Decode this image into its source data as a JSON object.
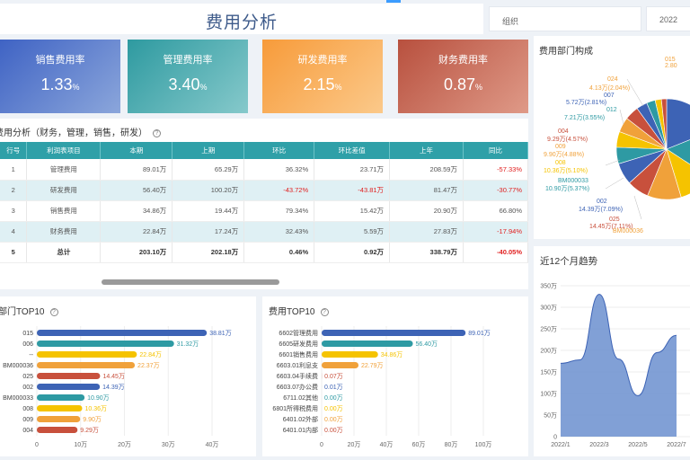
{
  "header": {
    "title": "费用分析",
    "org_placeholder": "组织",
    "year": "2022"
  },
  "kpis": [
    {
      "label": "销售费用率",
      "value": "1.33",
      "unit": "%"
    },
    {
      "label": "管理费用率",
      "value": "3.40",
      "unit": "%"
    },
    {
      "label": "研发费用率",
      "value": "2.15",
      "unit": "%"
    },
    {
      "label": "财务费用率",
      "value": "0.87",
      "unit": "%"
    }
  ],
  "table": {
    "title": "费用分析（财务，管理，销售，研发）",
    "columns": [
      "行号",
      "利润表项目",
      "本期",
      "上期",
      "环比",
      "环比差值",
      "上年",
      "同比"
    ],
    "rows": [
      [
        "1",
        "管理费用",
        "89.01万",
        "65.29万",
        "36.32%",
        "23.71万",
        "208.59万",
        "-57.33%"
      ],
      [
        "2",
        "研发费用",
        "56.40万",
        "100.20万",
        "-43.72%",
        "-43.81万",
        "81.47万",
        "-30.77%"
      ],
      [
        "3",
        "销售费用",
        "34.86万",
        "19.44万",
        "79.34%",
        "15.42万",
        "20.90万",
        "66.80%"
      ],
      [
        "4",
        "财务费用",
        "22.84万",
        "17.24万",
        "32.43%",
        "5.59万",
        "27.83万",
        "-17.94%"
      ],
      [
        "5",
        "总计",
        "203.10万",
        "202.18万",
        "0.46%",
        "0.92万",
        "338.79万",
        "-40.05%"
      ]
    ]
  },
  "dept_top10": {
    "title": "部门TOP10",
    "xticks": [
      "0",
      "10万",
      "20万",
      "30万",
      "40万"
    ],
    "items": [
      {
        "name": "015",
        "value": 38.81,
        "label": "38.81万",
        "color": "#3d63b5"
      },
      {
        "name": "006",
        "value": 31.32,
        "label": "31.32万",
        "color": "#2e9aa3"
      },
      {
        "name": "--",
        "value": 22.84,
        "label": "22.84万",
        "color": "#f5c300"
      },
      {
        "name": "BM000036",
        "value": 22.37,
        "label": "22.37万",
        "color": "#f0a13a"
      },
      {
        "name": "025",
        "value": 14.45,
        "label": "14.45万",
        "color": "#c8503c"
      },
      {
        "name": "002",
        "value": 14.39,
        "label": "14.39万",
        "color": "#3d63b5"
      },
      {
        "name": "BM000033",
        "value": 10.9,
        "label": "10.90万",
        "color": "#2e9aa3"
      },
      {
        "name": "008",
        "value": 10.36,
        "label": "10.36万",
        "color": "#f5c300"
      },
      {
        "name": "009",
        "value": 9.9,
        "label": "9.90万",
        "color": "#f0a13a"
      },
      {
        "name": "004",
        "value": 9.29,
        "label": "9.29万",
        "color": "#c8503c"
      }
    ]
  },
  "cost_top10": {
    "title": "费用TOP10",
    "xticks": [
      "0",
      "20万",
      "40万",
      "60万",
      "80万",
      "100万"
    ],
    "items": [
      {
        "name": "6602管理费用",
        "value": 89.01,
        "label": "89.01万",
        "color": "#3d63b5"
      },
      {
        "name": "6605研发费用",
        "value": 56.4,
        "label": "56.40万",
        "color": "#2e9aa3"
      },
      {
        "name": "6601销售费用",
        "value": 34.86,
        "label": "34.86万",
        "color": "#f5c300"
      },
      {
        "name": "6603.01利息支",
        "value": 22.79,
        "label": "22.79万",
        "color": "#f0a13a"
      },
      {
        "name": "6603.04手续费",
        "value": 0.07,
        "label": "0.07万",
        "color": "#c8503c"
      },
      {
        "name": "6603.07办公费",
        "value": 0.01,
        "label": "0.01万",
        "color": "#3d63b5"
      },
      {
        "name": "6711.02其他",
        "value": 0.0,
        "label": "0.00万",
        "color": "#2e9aa3"
      },
      {
        "name": "6801所得税费用",
        "value": 0.0,
        "label": "0.00万",
        "color": "#f5c300"
      },
      {
        "name": "6401.02外部",
        "value": 0.0,
        "label": "0.00万",
        "color": "#f0a13a"
      },
      {
        "name": "6401.01内部",
        "value": 0.0,
        "label": "0.00万",
        "color": "#c8503c"
      }
    ]
  },
  "dept_pie": {
    "title": "费用部门构成",
    "slices": [
      {
        "label": "015",
        "value": 19.11,
        "color": "#3d63b5"
      },
      {
        "label": "006",
        "value": 15.42,
        "color": "#2e9aa3"
      },
      {
        "label": "--",
        "value": 11.25,
        "color": "#f5c300"
      },
      {
        "label": "BM000036",
        "value": 11.01,
        "color": "#f0a13a"
      },
      {
        "label": "025",
        "value": 7.11,
        "color": "#c8503c"
      },
      {
        "label": "002",
        "value": 7.09,
        "color": "#3d63b5"
      },
      {
        "label": "BM000033",
        "value": 5.37,
        "color": "#2e9aa3"
      },
      {
        "label": "008",
        "value": 5.1,
        "color": "#f5c300"
      },
      {
        "label": "009",
        "value": 4.88,
        "color": "#f0a13a"
      },
      {
        "label": "004",
        "value": 4.57,
        "color": "#c8503c"
      },
      {
        "label": "012",
        "value": 3.55,
        "color": "#3d63b5"
      },
      {
        "label": "007",
        "value": 2.81,
        "color": "#2e9aa3"
      },
      {
        "label": "024",
        "value": 2.04,
        "color": "#f5c300"
      },
      {
        "label": "other",
        "value": 1.69,
        "color": "#c8503c"
      }
    ],
    "callouts": [
      {
        "text": "015",
        "color": "#f0a13a"
      },
      {
        "text": "2.80",
        "color": "#f0a13a"
      },
      {
        "text": "024",
        "color": "#f0a13a"
      },
      {
        "text": "4.13万(2.04%)",
        "color": "#f0a13a"
      },
      {
        "text": "007",
        "color": "#3d63b5"
      },
      {
        "text": "5.72万(2.81%)",
        "color": "#3d63b5"
      },
      {
        "text": "012",
        "color": "#2e9aa3"
      },
      {
        "text": "7.21万(3.55%)",
        "color": "#2e9aa3"
      },
      {
        "text": "004",
        "color": "#c8503c"
      },
      {
        "text": "9.29万(4.57%)",
        "color": "#c8503c"
      },
      {
        "text": "009",
        "color": "#f0a13a"
      },
      {
        "text": "9.90万(4.88%)",
        "color": "#f0a13a"
      },
      {
        "text": "008",
        "color": "#f5c300"
      },
      {
        "text": "10.36万(5.10%)",
        "color": "#f5c300"
      },
      {
        "text": "BM000033",
        "color": "#2e9aa3"
      },
      {
        "text": "10.90万(5.37%)",
        "color": "#2e9aa3"
      },
      {
        "text": "002",
        "color": "#3d63b5"
      },
      {
        "text": "14.39万(7.09%)",
        "color": "#3d63b5"
      },
      {
        "text": "025",
        "color": "#c8503c"
      },
      {
        "text": "14.45万(7.11%)",
        "color": "#c8503c"
      },
      {
        "text": "BM000036",
        "color": "#f0a13a"
      },
      {
        "text": "22.37万(11.01%)",
        "color": "#f0a13a"
      }
    ]
  },
  "trend": {
    "title": "近12个月趋势",
    "yticks": [
      "0",
      "50万",
      "100万",
      "150万",
      "200万",
      "250万",
      "300万",
      "350万"
    ],
    "xticks": [
      "2022/1",
      "2022/3",
      "2022/5",
      "2022/7"
    ]
  },
  "chart_data": {
    "type": "area",
    "title": "近12个月趋势",
    "x": [
      "2022/1",
      "2022/2",
      "2022/3",
      "2022/4",
      "2022/5",
      "2022/6",
      "2022/7"
    ],
    "values": [
      170,
      178,
      330,
      180,
      95,
      195,
      235
    ],
    "ylim": [
      0,
      350
    ],
    "color": "#6b8fcf",
    "grid": true
  }
}
